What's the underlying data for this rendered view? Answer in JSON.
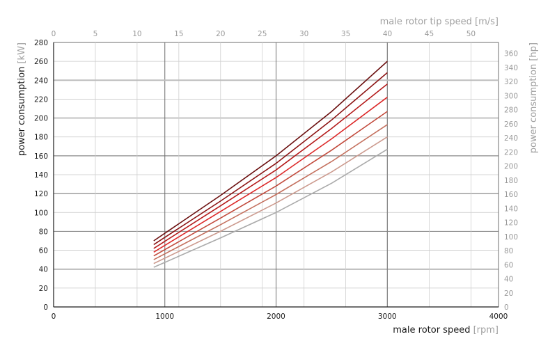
{
  "chart_data": {
    "type": "line",
    "xlabel": "male rotor speed",
    "xunit": "[rpm]",
    "ylabel": "power consumption",
    "yunit": "[kW]",
    "x2label": "male rotor tip speed",
    "x2unit": "[m/s]",
    "y2label": "power consumption",
    "y2unit": "[hp]",
    "xlim": [
      0,
      4000
    ],
    "ylim": [
      0,
      280
    ],
    "x2lim": [
      0,
      53.3
    ],
    "y2lim": [
      0,
      375.5
    ],
    "xticks": [
      0,
      1000,
      2000,
      3000,
      4000
    ],
    "yticks": [
      0,
      20,
      40,
      60,
      80,
      100,
      120,
      140,
      160,
      180,
      200,
      220,
      240,
      260,
      280
    ],
    "x2ticks": [
      0,
      5,
      10,
      15,
      20,
      25,
      30,
      35,
      40,
      45,
      50
    ],
    "y2ticks": [
      0,
      20,
      40,
      60,
      80,
      100,
      120,
      140,
      160,
      180,
      200,
      220,
      240,
      260,
      280,
      300,
      320,
      340,
      360
    ],
    "grid": true,
    "series": [
      {
        "color": "#6b0f0f",
        "points": [
          [
            900,
            70
          ],
          [
            1500,
            118
          ],
          [
            2000,
            160
          ],
          [
            2500,
            207
          ],
          [
            3000,
            260
          ]
        ]
      },
      {
        "color": "#8c1414",
        "points": [
          [
            900,
            66
          ],
          [
            1500,
            112
          ],
          [
            2000,
            152
          ],
          [
            2500,
            198
          ],
          [
            3000,
            248
          ]
        ]
      },
      {
        "color": "#b41a1a",
        "points": [
          [
            900,
            62
          ],
          [
            1500,
            107
          ],
          [
            2000,
            145
          ],
          [
            2500,
            189
          ],
          [
            3000,
            236
          ]
        ]
      },
      {
        "color": "#dc2828",
        "points": [
          [
            900,
            58
          ],
          [
            1500,
            101
          ],
          [
            2000,
            137
          ],
          [
            2500,
            178
          ],
          [
            3000,
            222
          ]
        ]
      },
      {
        "color": "#c24a3c",
        "points": [
          [
            900,
            54
          ],
          [
            1500,
            94
          ],
          [
            2000,
            128
          ],
          [
            2500,
            166
          ],
          [
            3000,
            207
          ]
        ]
      },
      {
        "color": "#c4705e",
        "points": [
          [
            900,
            50
          ],
          [
            1500,
            87
          ],
          [
            2000,
            119
          ],
          [
            2500,
            154
          ],
          [
            3000,
            193
          ]
        ]
      },
      {
        "color": "#cc9a8e",
        "points": [
          [
            900,
            46
          ],
          [
            1500,
            80
          ],
          [
            2000,
            110
          ],
          [
            2500,
            143
          ],
          [
            3000,
            180
          ]
        ]
      },
      {
        "color": "#aaaaaa",
        "points": [
          [
            900,
            42
          ],
          [
            1500,
            73
          ],
          [
            2000,
            100
          ],
          [
            2500,
            131
          ],
          [
            3000,
            167
          ]
        ]
      }
    ]
  }
}
